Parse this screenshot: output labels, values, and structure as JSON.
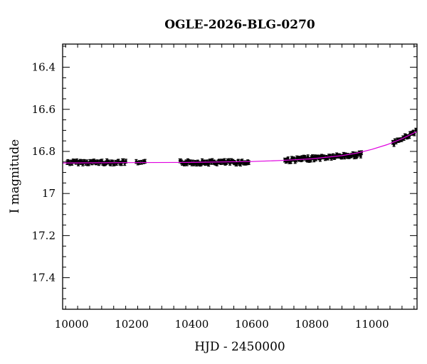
{
  "chart_data": {
    "type": "scatter",
    "title": "OGLE-2026-BLG-0270",
    "xlabel": "HJD - 2450000",
    "ylabel": "I magnitude",
    "xlim": [
      9970,
      11150
    ],
    "ylim": [
      17.55,
      16.29
    ],
    "y_inverted": true,
    "x_ticks": [
      10000,
      10200,
      10400,
      10600,
      10800,
      11000
    ],
    "x_tick_labels": [
      "10000",
      "10200",
      "10400",
      "10600",
      "10800",
      "11000"
    ],
    "y_ticks": [
      16.4,
      16.6,
      16.8,
      17.0,
      17.2,
      17.4
    ],
    "y_tick_labels": [
      "16.4",
      "16.6",
      "16.8",
      "17",
      "17.2",
      "17.4"
    ],
    "grid": false,
    "model_color": "#e000e0",
    "point_color": "#000000",
    "series": [
      {
        "kind": "errorbar",
        "seasons": [
          {
            "x_start": 9985,
            "x_end": 10180,
            "mag": 16.852,
            "trend": 0.0,
            "scatter": 0.008,
            "count": 60
          },
          {
            "x_start": 10215,
            "x_end": 10245,
            "mag": 16.855,
            "trend": 0.0,
            "scatter": 0.008,
            "count": 6
          },
          {
            "x_start": 10360,
            "x_end": 10590,
            "mag": 16.852,
            "trend": 0.0,
            "scatter": 0.009,
            "count": 75
          },
          {
            "x_start": 10710,
            "x_end": 10965,
            "mag": 16.843,
            "trend": -0.028,
            "scatter": 0.009,
            "count": 90
          },
          {
            "x_start": 11070,
            "x_end": 11145,
            "mag": 16.762,
            "trend": -0.055,
            "scatter": 0.008,
            "count": 22
          }
        ],
        "error": 0.009
      },
      {
        "kind": "model",
        "x": [
          9970,
          10200,
          10400,
          10600,
          10700,
          10800,
          10900,
          10950,
          11000,
          11050,
          11100,
          11150
        ],
        "y": [
          16.855,
          16.853,
          16.852,
          16.848,
          16.843,
          16.835,
          16.82,
          16.808,
          16.79,
          16.768,
          16.74,
          16.705
        ]
      }
    ]
  }
}
